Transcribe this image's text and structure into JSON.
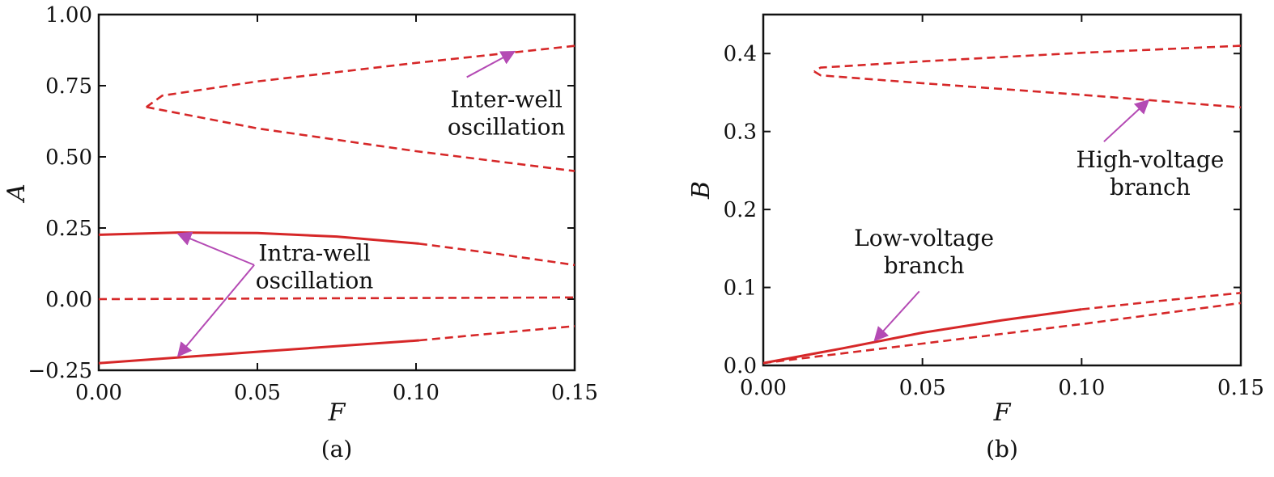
{
  "colors": {
    "curve": "#d62728",
    "annotation": "#b44ab4",
    "axes": "#111111"
  },
  "chart_data": [
    {
      "type": "line",
      "panel_label": "(a)",
      "xlabel": "F",
      "ylabel": "A",
      "xlim": [
        0,
        0.15
      ],
      "ylim": [
        -0.25,
        1.0
      ],
      "xticks": [
        "0.00",
        "0.05",
        "0.10",
        "0.15"
      ],
      "xtick_values": [
        0,
        0.05,
        0.1,
        0.15
      ],
      "yticks": [
        "−0.25",
        "0.00",
        "0.25",
        "0.50",
        "0.75",
        "1.00"
      ],
      "ytick_values": [
        -0.25,
        0,
        0.25,
        0.5,
        0.75,
        1.0
      ],
      "grid": false,
      "series": [
        {
          "style": "solid",
          "x": [
            0,
            0.025,
            0.05,
            0.075,
            0.101
          ],
          "y": [
            0.226,
            0.234,
            0.232,
            0.22,
            0.195
          ]
        },
        {
          "style": "dashed",
          "x": [
            0.101,
            0.125,
            0.15
          ],
          "y": [
            0.195,
            0.16,
            0.12
          ]
        },
        {
          "style": "dashed",
          "x": [
            0,
            0.05,
            0.1,
            0.15
          ],
          "y": [
            0.0,
            0.002,
            0.004,
            0.006
          ]
        },
        {
          "style": "solid",
          "x": [
            0,
            0.05,
            0.101
          ],
          "y": [
            -0.225,
            -0.185,
            -0.145
          ]
        },
        {
          "style": "dashed",
          "x": [
            0.101,
            0.125,
            0.15
          ],
          "y": [
            -0.145,
            -0.12,
            -0.095
          ]
        },
        {
          "style": "dashed",
          "x": [
            0.15,
            0.1,
            0.05,
            0.02,
            0.015
          ],
          "y": [
            0.89,
            0.83,
            0.765,
            0.715,
            0.675
          ]
        },
        {
          "style": "dashed",
          "x": [
            0.015,
            0.05,
            0.1,
            0.15
          ],
          "y": [
            0.675,
            0.6,
            0.52,
            0.45
          ]
        }
      ],
      "annotations": [
        {
          "text_lines": [
            "Inter-well",
            "oscillation"
          ],
          "text_at": [
            0.1285,
            0.655
          ],
          "arrows": [
            {
              "from": [
                0.116,
                0.78
              ],
              "to": [
                0.131,
                0.87
              ]
            }
          ]
        },
        {
          "text_lines": [
            "Intra-well",
            "oscillation"
          ],
          "text_at": [
            0.068,
            0.115
          ],
          "arrows": [
            {
              "from": [
                0.049,
                0.12
              ],
              "to": [
                0.025,
                0.23
              ]
            },
            {
              "from": [
                0.049,
                0.12
              ],
              "to": [
                0.025,
                -0.2
              ]
            }
          ]
        }
      ]
    },
    {
      "type": "line",
      "panel_label": "(b)",
      "xlabel": "F",
      "ylabel": "B",
      "xlim": [
        0,
        0.15
      ],
      "ylim": [
        0,
        0.45
      ],
      "xticks": [
        "0.00",
        "0.05",
        "0.10",
        "0.15"
      ],
      "xtick_values": [
        0,
        0.05,
        0.1,
        0.15
      ],
      "yticks": [
        "0.0",
        "0.1",
        "0.2",
        "0.3",
        "0.4"
      ],
      "ytick_values": [
        0,
        0.1,
        0.2,
        0.3,
        0.4
      ],
      "grid": false,
      "series": [
        {
          "style": "solid",
          "x": [
            0,
            0.025,
            0.05,
            0.075,
            0.1
          ],
          "y": [
            0.003,
            0.022,
            0.042,
            0.058,
            0.072
          ]
        },
        {
          "style": "dashed",
          "x": [
            0.1,
            0.125,
            0.15
          ],
          "y": [
            0.072,
            0.083,
            0.093
          ]
        },
        {
          "style": "dashed",
          "x": [
            0.0,
            0.05,
            0.1,
            0.15
          ],
          "y": [
            0.003,
            0.028,
            0.053,
            0.08
          ]
        },
        {
          "style": "dashed",
          "x": [
            0.15,
            0.1,
            0.05,
            0.018,
            0.016
          ],
          "y": [
            0.41,
            0.401,
            0.39,
            0.382,
            0.377
          ]
        },
        {
          "style": "dashed",
          "x": [
            0.016,
            0.018,
            0.05,
            0.1,
            0.15
          ],
          "y": [
            0.377,
            0.372,
            0.362,
            0.347,
            0.331
          ]
        }
      ],
      "annotations": [
        {
          "text_lines": [
            "High-voltage",
            "branch"
          ],
          "text_at": [
            0.1215,
            0.247
          ],
          "arrows": [
            {
              "from": [
                0.107,
                0.287
              ],
              "to": [
                0.121,
                0.34
              ]
            }
          ]
        },
        {
          "text_lines": [
            "Low-voltage",
            "branch"
          ],
          "text_at": [
            0.0505,
            0.146
          ],
          "arrows": [
            {
              "from": [
                0.049,
                0.095
              ],
              "to": [
                0.035,
                0.032
              ]
            }
          ]
        }
      ]
    }
  ]
}
